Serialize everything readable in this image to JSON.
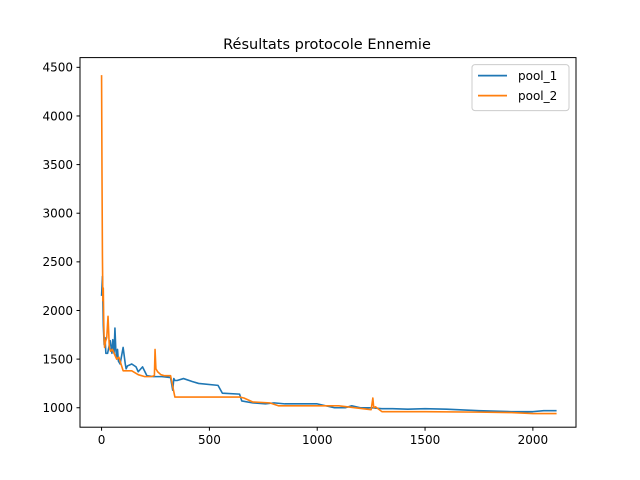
{
  "chart_data": {
    "type": "line",
    "title": "Résultats protocole Ennemie",
    "xlabel": "",
    "ylabel": "",
    "xlim": [
      -100,
      2200
    ],
    "ylim": [
      800,
      4600
    ],
    "xticks": [
      0,
      500,
      1000,
      1500,
      2000
    ],
    "xtick_labels": [
      "0",
      "500",
      "1000",
      "1500",
      "2000"
    ],
    "yticks": [
      1000,
      1500,
      2000,
      2500,
      3000,
      3500,
      4000,
      4500
    ],
    "ytick_labels": [
      "1000",
      "1500",
      "2000",
      "2500",
      "3000",
      "3500",
      "4000",
      "4500"
    ],
    "grid": false,
    "legend": "top-right",
    "colors": {
      "pool_1": "#1f77b4",
      "pool_2": "#ff7f0e"
    },
    "series": [
      {
        "name": "pool_1",
        "x": [
          0,
          4,
          8,
          12,
          16,
          20,
          28,
          40,
          48,
          52,
          58,
          62,
          66,
          70,
          74,
          78,
          86,
          100,
          110,
          114,
          120,
          140,
          160,
          170,
          190,
          210,
          240,
          252,
          280,
          320,
          330,
          335,
          340,
          350,
          380,
          420,
          450,
          540,
          560,
          640,
          650,
          700,
          760,
          800,
          850,
          1000,
          1080,
          1130,
          1160,
          1200,
          1250,
          1300,
          1350,
          1420,
          1500,
          1600,
          1750,
          1900,
          2000,
          2050,
          2110
        ],
        "y": [
          2150,
          2350,
          1850,
          1650,
          1720,
          1560,
          1560,
          1690,
          1560,
          1700,
          1560,
          1820,
          1600,
          1520,
          1600,
          1480,
          1450,
          1620,
          1450,
          1400,
          1430,
          1450,
          1420,
          1370,
          1420,
          1330,
          1320,
          1320,
          1320,
          1310,
          1180,
          1300,
          1280,
          1280,
          1300,
          1270,
          1250,
          1230,
          1150,
          1140,
          1070,
          1050,
          1040,
          1050,
          1040,
          1040,
          1000,
          1000,
          1020,
          1000,
          1000,
          990,
          990,
          985,
          990,
          985,
          970,
          960,
          960,
          970,
          970
        ]
      },
      {
        "name": "pool_2",
        "x": [
          0,
          2,
          4,
          6,
          8,
          10,
          12,
          14,
          18,
          24,
          30,
          36,
          42,
          50,
          60,
          70,
          80,
          100,
          140,
          170,
          200,
          230,
          245,
          248,
          252,
          260,
          275,
          290,
          320,
          340,
          500,
          640,
          660,
          700,
          780,
          820,
          900,
          1100,
          1250,
          1258,
          1262,
          1270,
          1300,
          1500,
          1750,
          1900,
          2000,
          2110
        ],
        "y": [
          4420,
          3400,
          2560,
          2100,
          2230,
          1900,
          1700,
          1620,
          1680,
          1720,
          1940,
          1620,
          1580,
          1600,
          1550,
          1500,
          1520,
          1380,
          1380,
          1340,
          1320,
          1320,
          1330,
          1600,
          1400,
          1370,
          1340,
          1330,
          1330,
          1110,
          1110,
          1110,
          1100,
          1060,
          1050,
          1020,
          1020,
          1020,
          980,
          1100,
          1000,
          1010,
          960,
          960,
          955,
          950,
          940,
          940
        ]
      }
    ]
  }
}
